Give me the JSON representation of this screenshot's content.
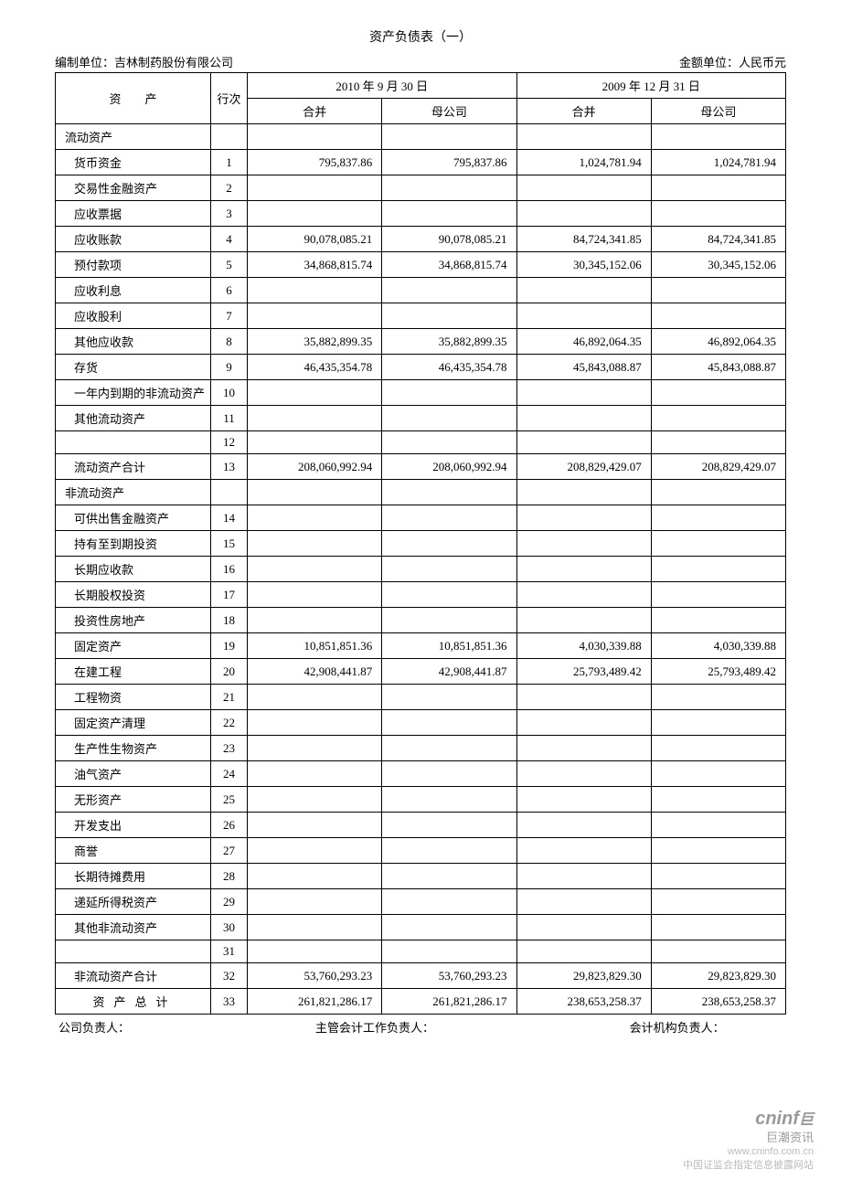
{
  "title": "资产负债表（一）",
  "prep_unit_label": "编制单位：",
  "prep_unit_value": "吉林制药股份有限公司",
  "currency_label": "金额单位：",
  "currency_value": "人民币元",
  "table": {
    "header": {
      "asset": "资　　产",
      "seq": "行次",
      "period1": "2010 年 9 月 30 日",
      "period2": "2009 年 12 月 31 日",
      "consolidated": "合并",
      "parent": "母公司"
    },
    "rows": [
      {
        "label": "流动资产",
        "seq": "",
        "v": [
          "",
          "",
          "",
          ""
        ],
        "cls": "label-cell"
      },
      {
        "label": "货币资金",
        "seq": "1",
        "v": [
          "795,837.86",
          "795,837.86",
          "1,024,781.94",
          "1,024,781.94"
        ],
        "cls": "label-cell label-indent"
      },
      {
        "label": "交易性金融资产",
        "seq": "2",
        "v": [
          "",
          "",
          "",
          ""
        ],
        "cls": "label-cell label-indent"
      },
      {
        "label": "应收票据",
        "seq": "3",
        "v": [
          "",
          "",
          "",
          ""
        ],
        "cls": "label-cell label-indent"
      },
      {
        "label": "应收账款",
        "seq": "4",
        "v": [
          "90,078,085.21",
          "90,078,085.21",
          "84,724,341.85",
          "84,724,341.85"
        ],
        "cls": "label-cell label-indent"
      },
      {
        "label": "预付款项",
        "seq": "5",
        "v": [
          "34,868,815.74",
          "34,868,815.74",
          "30,345,152.06",
          "30,345,152.06"
        ],
        "cls": "label-cell label-indent"
      },
      {
        "label": "应收利息",
        "seq": "6",
        "v": [
          "",
          "",
          "",
          ""
        ],
        "cls": "label-cell label-indent"
      },
      {
        "label": "应收股利",
        "seq": "7",
        "v": [
          "",
          "",
          "",
          ""
        ],
        "cls": "label-cell label-indent"
      },
      {
        "label": "其他应收款",
        "seq": "8",
        "v": [
          "35,882,899.35",
          "35,882,899.35",
          "46,892,064.35",
          "46,892,064.35"
        ],
        "cls": "label-cell label-indent"
      },
      {
        "label": "存货",
        "seq": "9",
        "v": [
          "46,435,354.78",
          "46,435,354.78",
          "45,843,088.87",
          "45,843,088.87"
        ],
        "cls": "label-cell label-indent"
      },
      {
        "label": "一年内到期的非流动资产",
        "seq": "10",
        "v": [
          "",
          "",
          "",
          ""
        ],
        "cls": "label-cell label-indent"
      },
      {
        "label": "其他流动资产",
        "seq": "11",
        "v": [
          "",
          "",
          "",
          ""
        ],
        "cls": "label-cell label-indent"
      },
      {
        "label": "",
        "seq": "12",
        "v": [
          "",
          "",
          "",
          ""
        ],
        "cls": "label-cell label-indent"
      },
      {
        "label": "流动资产合计",
        "seq": "13",
        "v": [
          "208,060,992.94",
          "208,060,992.94",
          "208,829,429.07",
          "208,829,429.07"
        ],
        "cls": "label-cell label-indent"
      },
      {
        "label": "非流动资产",
        "seq": "",
        "v": [
          "",
          "",
          "",
          ""
        ],
        "cls": "label-cell"
      },
      {
        "label": "可供出售金融资产",
        "seq": "14",
        "v": [
          "",
          "",
          "",
          ""
        ],
        "cls": "label-cell label-indent"
      },
      {
        "label": "持有至到期投资",
        "seq": "15",
        "v": [
          "",
          "",
          "",
          ""
        ],
        "cls": "label-cell label-indent"
      },
      {
        "label": "长期应收款",
        "seq": "16",
        "v": [
          "",
          "",
          "",
          ""
        ],
        "cls": "label-cell label-indent"
      },
      {
        "label": "长期股权投资",
        "seq": "17",
        "v": [
          "",
          "",
          "",
          ""
        ],
        "cls": "label-cell label-indent"
      },
      {
        "label": "投资性房地产",
        "seq": "18",
        "v": [
          "",
          "",
          "",
          ""
        ],
        "cls": "label-cell label-indent"
      },
      {
        "label": "固定资产",
        "seq": "19",
        "v": [
          "10,851,851.36",
          "10,851,851.36",
          "4,030,339.88",
          "4,030,339.88"
        ],
        "cls": "label-cell label-indent"
      },
      {
        "label": "在建工程",
        "seq": "20",
        "v": [
          "42,908,441.87",
          "42,908,441.87",
          "25,793,489.42",
          "25,793,489.42"
        ],
        "cls": "label-cell label-indent"
      },
      {
        "label": "工程物资",
        "seq": "21",
        "v": [
          "",
          "",
          "",
          ""
        ],
        "cls": "label-cell label-indent"
      },
      {
        "label": "固定资产清理",
        "seq": "22",
        "v": [
          "",
          "",
          "",
          ""
        ],
        "cls": "label-cell label-indent"
      },
      {
        "label": "生产性生物资产",
        "seq": "23",
        "v": [
          "",
          "",
          "",
          ""
        ],
        "cls": "label-cell label-indent"
      },
      {
        "label": "油气资产",
        "seq": "24",
        "v": [
          "",
          "",
          "",
          ""
        ],
        "cls": "label-cell label-indent"
      },
      {
        "label": "无形资产",
        "seq": "25",
        "v": [
          "",
          "",
          "",
          ""
        ],
        "cls": "label-cell label-indent"
      },
      {
        "label": "开发支出",
        "seq": "26",
        "v": [
          "",
          "",
          "",
          ""
        ],
        "cls": "label-cell label-indent"
      },
      {
        "label": "商誉",
        "seq": "27",
        "v": [
          "",
          "",
          "",
          ""
        ],
        "cls": "label-cell label-indent"
      },
      {
        "label": "长期待摊费用",
        "seq": "28",
        "v": [
          "",
          "",
          "",
          ""
        ],
        "cls": "label-cell label-indent"
      },
      {
        "label": "递延所得税资产",
        "seq": "29",
        "v": [
          "",
          "",
          "",
          ""
        ],
        "cls": "label-cell label-indent"
      },
      {
        "label": "其他非流动资产",
        "seq": "30",
        "v": [
          "",
          "",
          "",
          ""
        ],
        "cls": "label-cell label-indent"
      },
      {
        "label": "",
        "seq": "31",
        "v": [
          "",
          "",
          "",
          ""
        ],
        "cls": "label-cell label-indent"
      },
      {
        "label": "非流动资产合计",
        "seq": "32",
        "v": [
          "53,760,293.23",
          "53,760,293.23",
          "29,823,829.30",
          "29,823,829.30"
        ],
        "cls": "label-cell label-indent"
      },
      {
        "label": "资产总计",
        "seq": "33",
        "v": [
          "261,821,286.17",
          "261,821,286.17",
          "238,653,258.37",
          "238,653,258.37"
        ],
        "cls": "label-cell label-center"
      }
    ]
  },
  "footer": {
    "l1": "公司负责人：",
    "l2": "主管会计工作负责人：",
    "l3": "会计机构负责人："
  },
  "watermark": {
    "logo": "cninf",
    "cn": "巨潮资讯",
    "url": "www.cninfo.com.cn",
    "desc": "中国证监会指定信息披露网站"
  }
}
